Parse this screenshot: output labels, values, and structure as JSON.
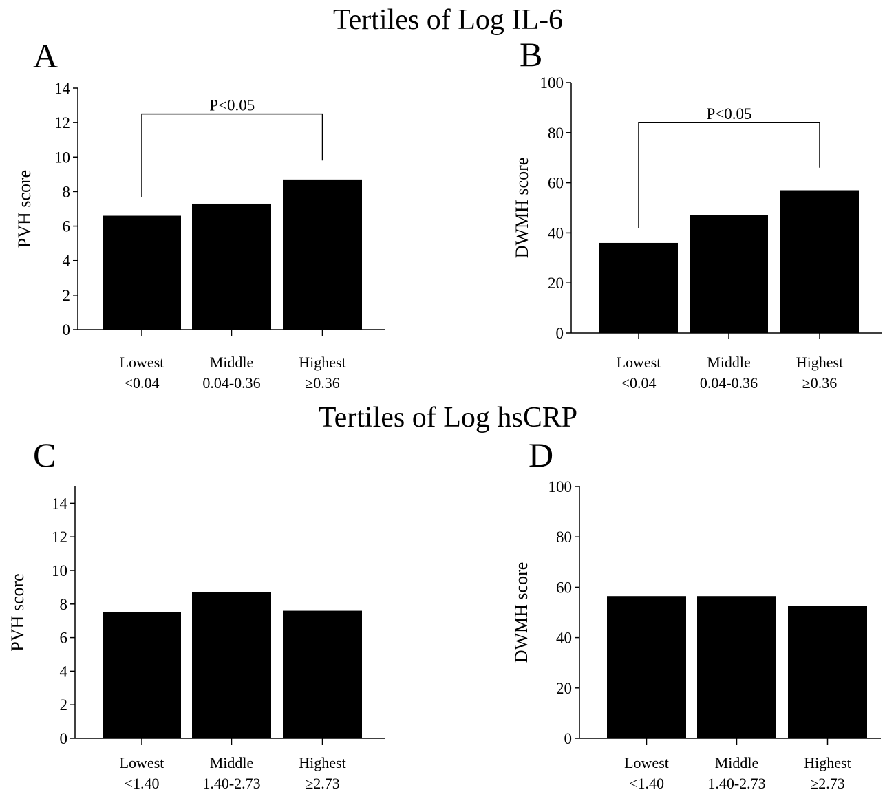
{
  "section_titles": [
    "Tertiles of Log IL-6",
    "Tertiles of Log hsCRP"
  ],
  "chart_data": [
    {
      "type": "bar",
      "panel_label": "A",
      "ylabel": "PVH score",
      "ylim": [
        0,
        14
      ],
      "yticks": [
        0,
        2,
        4,
        6,
        8,
        10,
        12,
        14
      ],
      "categories": [
        [
          "Lowest",
          "<0.04"
        ],
        [
          "Middle",
          "0.04-0.36"
        ],
        [
          "Highest",
          "≥0.36"
        ]
      ],
      "values": [
        6.6,
        7.3,
        8.7
      ],
      "annotation": {
        "text": "P<0.05",
        "from_category": 0,
        "to_category": 2,
        "level": 12.5,
        "left_end": 7.7,
        "right_end": 9.8
      }
    },
    {
      "type": "bar",
      "panel_label": "B",
      "ylabel": "DWMH score",
      "ylim": [
        0,
        100
      ],
      "yticks": [
        0,
        20,
        40,
        60,
        80,
        100
      ],
      "categories": [
        [
          "Lowest",
          "<0.04"
        ],
        [
          "Middle",
          "0.04-0.36"
        ],
        [
          "Highest",
          "≥0.36"
        ]
      ],
      "values": [
        36,
        47,
        57
      ],
      "annotation": {
        "text": "P<0.05",
        "from_category": 0,
        "to_category": 2,
        "level": 84,
        "left_end": 42,
        "right_end": 66
      }
    },
    {
      "type": "bar",
      "panel_label": "C",
      "ylabel": "PVH score",
      "ylim": [
        0,
        15
      ],
      "yticks": [
        0,
        2,
        4,
        6,
        8,
        10,
        12,
        14
      ],
      "categories": [
        [
          "Lowest",
          "<1.40"
        ],
        [
          "Middle",
          "1.40-2.73"
        ],
        [
          "Highest",
          "≥2.73"
        ]
      ],
      "values": [
        7.5,
        8.7,
        7.6
      ]
    },
    {
      "type": "bar",
      "panel_label": "D",
      "ylabel": "DWMH score",
      "ylim": [
        0,
        100
      ],
      "yticks": [
        0,
        20,
        40,
        60,
        80,
        100
      ],
      "categories": [
        [
          "Lowest",
          "<1.40"
        ],
        [
          "Middle",
          "1.40-2.73"
        ],
        [
          "Highest",
          "≥2.73"
        ]
      ],
      "values": [
        56.5,
        56.5,
        52.5
      ]
    }
  ]
}
